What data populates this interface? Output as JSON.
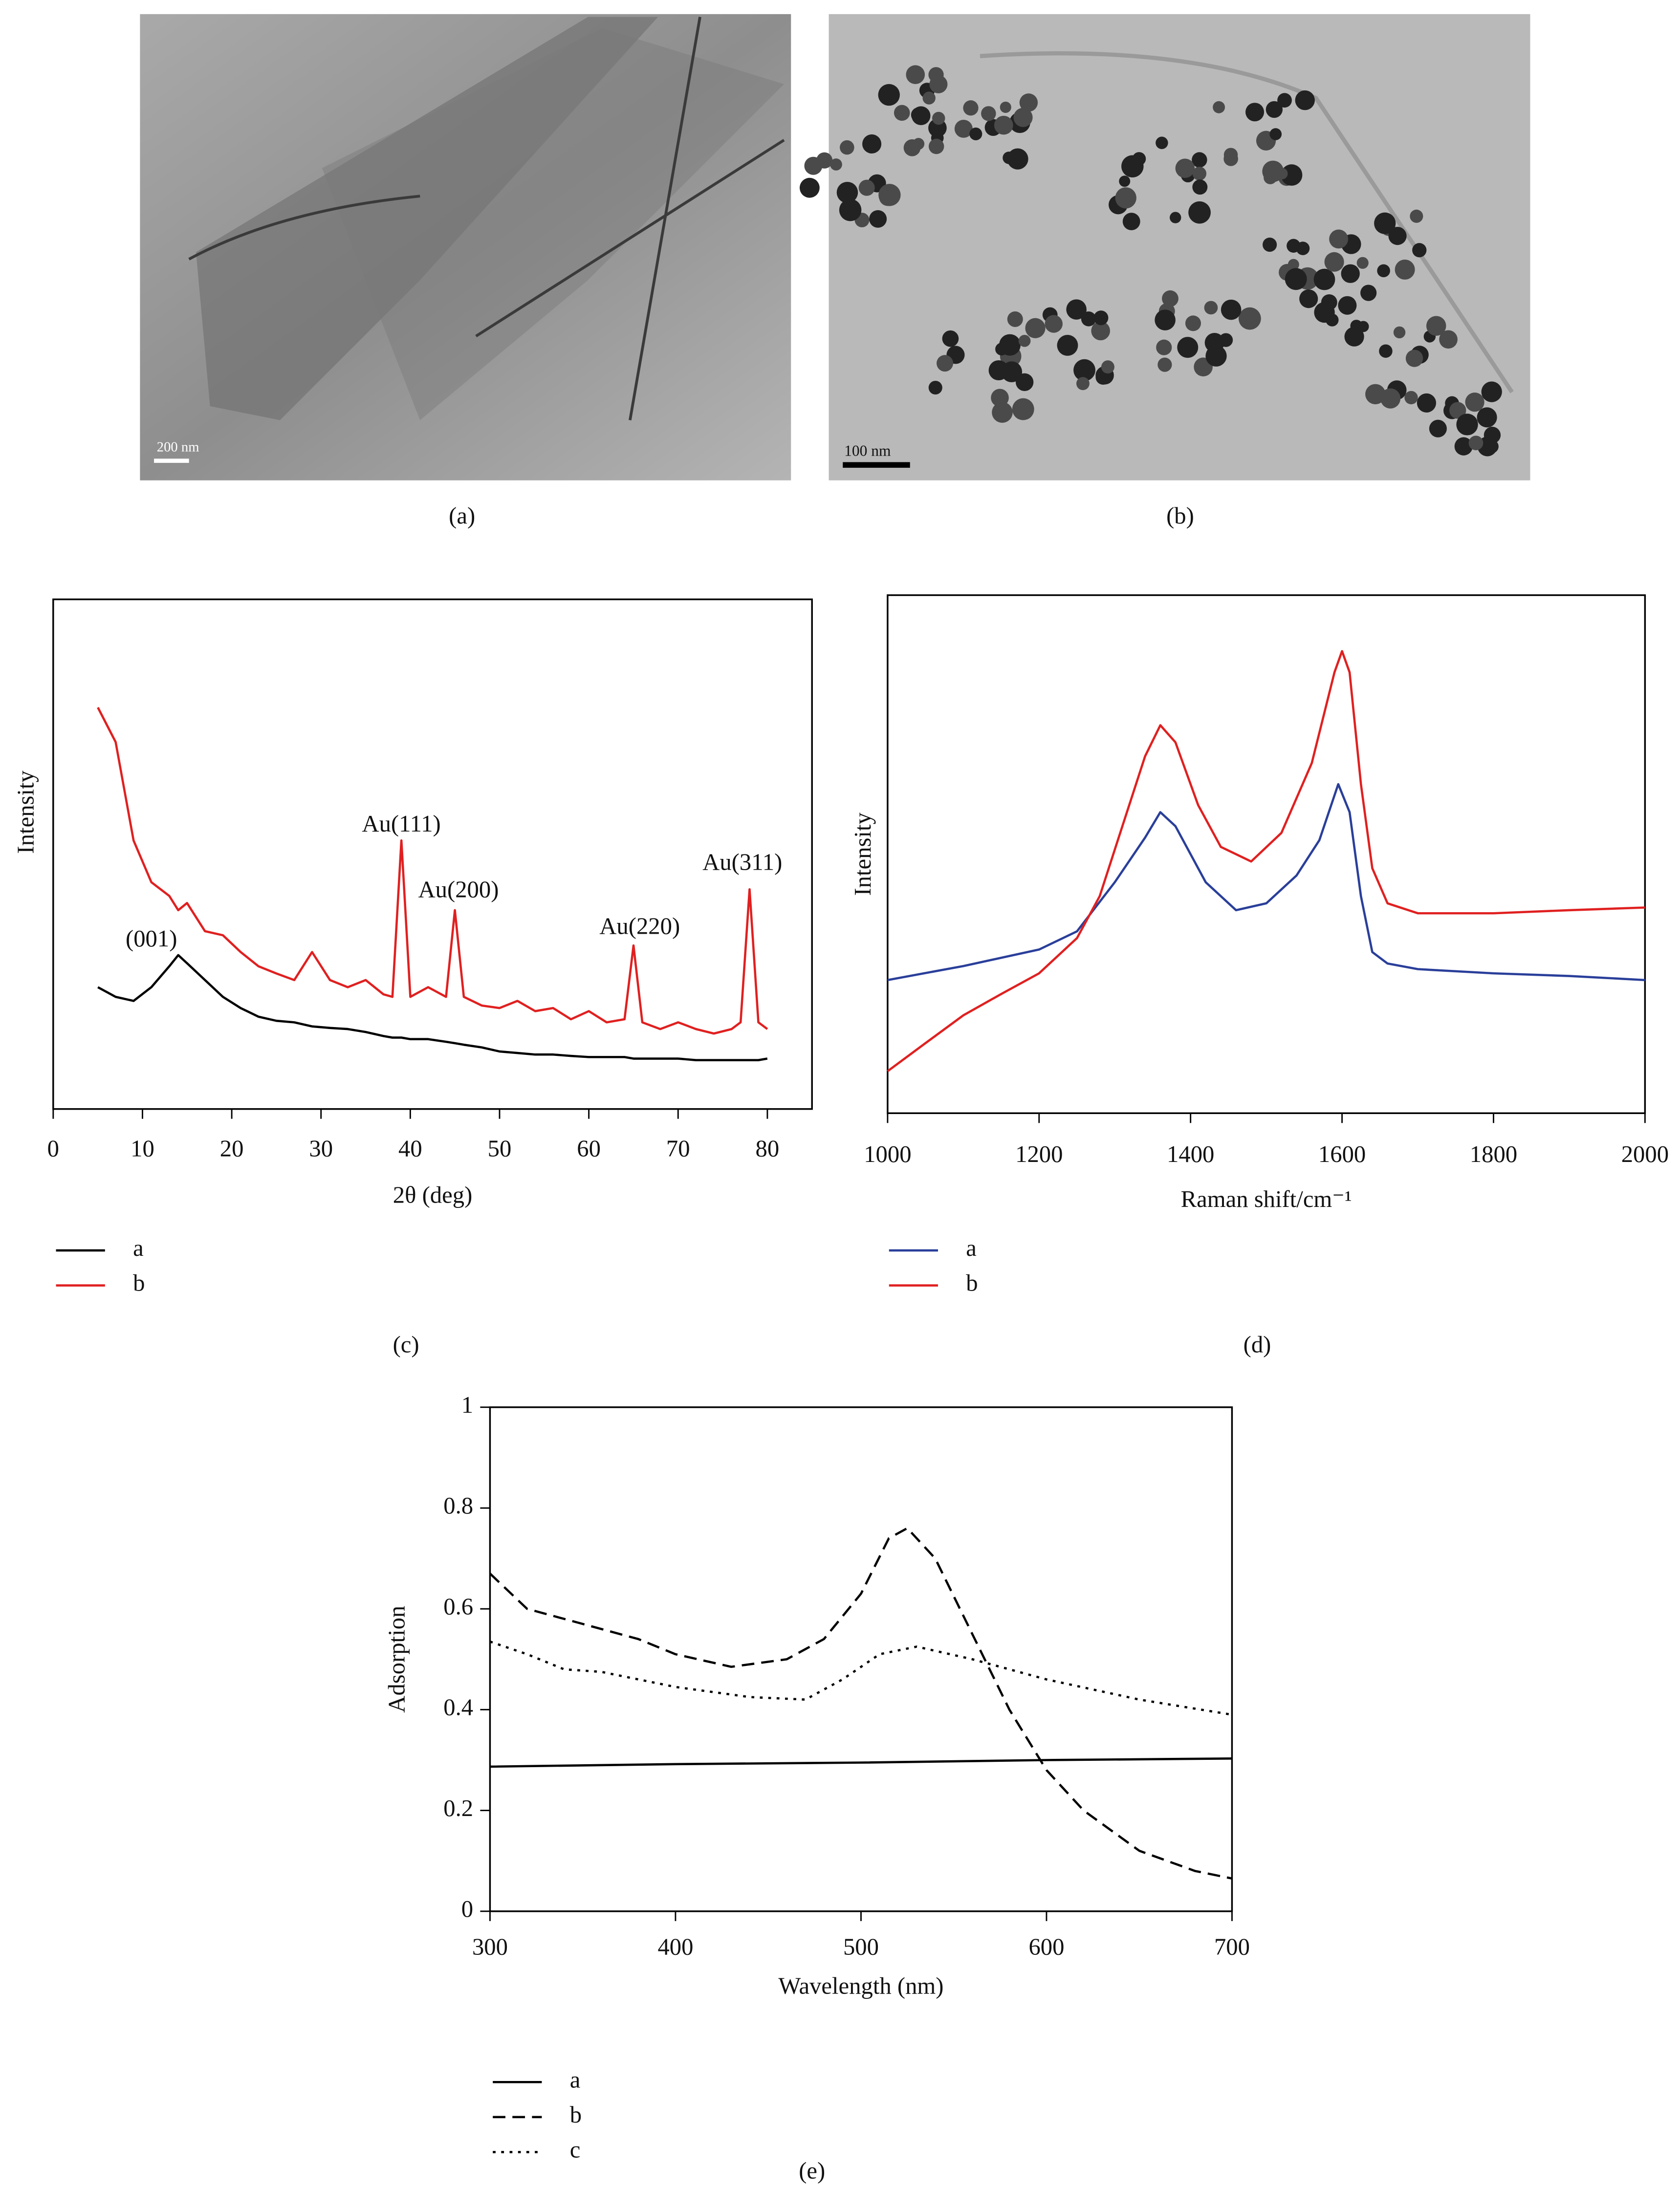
{
  "micrographs": [
    {
      "panel_label": "(a)",
      "scale_bar": "200 nm"
    },
    {
      "panel_label": "(b)",
      "scale_bar": "100 nm"
    }
  ],
  "chart_data": [
    {
      "type": "line",
      "panel_label": "(c)",
      "x_label": "2θ (deg)",
      "y_label": "Intensity",
      "xlim": [
        0,
        85
      ],
      "xticks": [
        0,
        10,
        20,
        30,
        40,
        50,
        60,
        70,
        80
      ],
      "ylim": [
        0,
        100
      ],
      "x": [
        5,
        7,
        9,
        11,
        13,
        14,
        15,
        17,
        19,
        21,
        23,
        25,
        27,
        29,
        31,
        33,
        35,
        37,
        38,
        39,
        40,
        42,
        44,
        45,
        46,
        48,
        50,
        52,
        54,
        56,
        58,
        60,
        62,
        64,
        65,
        66,
        68,
        70,
        72,
        74,
        76,
        77,
        78,
        79,
        80
      ],
      "series": [
        {
          "name": "a",
          "color": "#000000",
          "line_style": "solid",
          "values": [
            23.9,
            22.0,
            21.2,
            23.9,
            28.0,
            30.2,
            28.6,
            25.3,
            22.0,
            19.8,
            18.1,
            17.3,
            17.0,
            16.2,
            15.9,
            15.7,
            15.1,
            14.3,
            14.0,
            14.0,
            13.7,
            13.7,
            13.2,
            12.9,
            12.6,
            12.1,
            11.3,
            11.0,
            10.7,
            10.7,
            10.4,
            10.2,
            10.2,
            10.2,
            9.9,
            9.9,
            9.9,
            9.9,
            9.6,
            9.6,
            9.6,
            9.6,
            9.6,
            9.6,
            9.9
          ]
        },
        {
          "name": "b",
          "color": "#e02020",
          "line_style": "solid",
          "values": [
            78.8,
            72.0,
            52.7,
            44.5,
            41.8,
            39.0,
            40.4,
            34.9,
            34.1,
            30.8,
            28.0,
            26.6,
            25.3,
            30.8,
            25.3,
            23.9,
            25.3,
            22.5,
            22.0,
            52.7,
            22.0,
            23.9,
            22.0,
            39.0,
            22.0,
            20.3,
            19.8,
            21.2,
            19.2,
            19.8,
            17.6,
            19.2,
            17.0,
            17.6,
            32.1,
            17.0,
            15.7,
            17.0,
            15.7,
            14.8,
            15.7,
            17.0,
            43.1,
            17.0,
            15.7
          ]
        }
      ],
      "annotations": [
        {
          "text": "(001)",
          "x": 11,
          "y": 33
        },
        {
          "text": "Au(111)",
          "x": 39,
          "y": 55.5
        },
        {
          "text": "Au(200)",
          "x": 45.4,
          "y": 42.6
        },
        {
          "text": "Au(220)",
          "x": 65.7,
          "y": 35.4
        },
        {
          "text": "Au(311)",
          "x": 77.2,
          "y": 48
        }
      ]
    },
    {
      "type": "line",
      "panel_label": "(d)",
      "x_label": "Raman shift/cm⁻¹",
      "y_label": "Intensity",
      "xlim": [
        1000,
        2000
      ],
      "xticks": [
        1000,
        1200,
        1400,
        1600,
        1800,
        2000
      ],
      "ylim": [
        0,
        100
      ],
      "series": [
        {
          "name": "a",
          "color": "#2a3f9a",
          "line_style": "solid",
          "x": [
            1000,
            1100,
            1200,
            1250,
            1300,
            1340,
            1360,
            1380,
            1420,
            1460,
            1500,
            1540,
            1570,
            1595,
            1610,
            1625,
            1640,
            1660,
            1700,
            1800,
            1900,
            2000
          ],
          "values": [
            25.7,
            28.4,
            31.6,
            35.1,
            44.6,
            53.2,
            58.1,
            55.4,
            44.6,
            39.2,
            40.5,
            45.9,
            52.7,
            63.5,
            58.1,
            41.9,
            31.1,
            28.9,
            27.8,
            27.0,
            26.5,
            25.7
          ]
        },
        {
          "name": "b",
          "color": "#e02020",
          "line_style": "solid",
          "x": [
            1000,
            1050,
            1100,
            1150,
            1200,
            1250,
            1280,
            1310,
            1340,
            1360,
            1380,
            1410,
            1440,
            1480,
            1520,
            1560,
            1590,
            1600,
            1610,
            1625,
            1640,
            1660,
            1700,
            1800,
            1900,
            2000
          ],
          "values": [
            8.1,
            13.5,
            18.9,
            23.0,
            27.0,
            33.8,
            41.9,
            55.4,
            68.9,
            74.9,
            71.6,
            59.5,
            51.4,
            48.6,
            54.1,
            67.6,
            85.1,
            89.2,
            85.1,
            63.5,
            47.3,
            40.5,
            38.6,
            38.6,
            39.2,
            39.7
          ]
        }
      ]
    },
    {
      "type": "line",
      "panel_label": "(e)",
      "x_label": "Wavelength (nm)",
      "y_label": "Adsorption",
      "xlim": [
        300,
        700
      ],
      "xticks": [
        300,
        400,
        500,
        600,
        700
      ],
      "ylim": [
        0,
        1
      ],
      "yticks": [
        0,
        0.2,
        0.4,
        0.6,
        0.8,
        1
      ],
      "series": [
        {
          "name": "a",
          "color": "#000000",
          "line_style": "solid",
          "x": [
            300,
            400,
            500,
            600,
            700
          ],
          "values": [
            0.287,
            0.292,
            0.295,
            0.3,
            0.303
          ]
        },
        {
          "name": "b",
          "color": "#000000",
          "line_style": "dashed",
          "x": [
            300,
            320,
            350,
            380,
            400,
            430,
            460,
            480,
            500,
            515,
            525,
            540,
            560,
            580,
            600,
            620,
            650,
            680,
            700
          ],
          "values": [
            0.67,
            0.6,
            0.57,
            0.54,
            0.51,
            0.485,
            0.5,
            0.54,
            0.63,
            0.74,
            0.76,
            0.7,
            0.55,
            0.4,
            0.28,
            0.2,
            0.12,
            0.08,
            0.065
          ]
        },
        {
          "name": "c",
          "color": "#000000",
          "line_style": "dotted",
          "x": [
            300,
            320,
            340,
            360,
            400,
            440,
            470,
            490,
            510,
            530,
            560,
            600,
            650,
            700
          ],
          "values": [
            0.535,
            0.51,
            0.48,
            0.475,
            0.445,
            0.425,
            0.42,
            0.46,
            0.51,
            0.525,
            0.5,
            0.46,
            0.42,
            0.39
          ]
        }
      ]
    }
  ]
}
